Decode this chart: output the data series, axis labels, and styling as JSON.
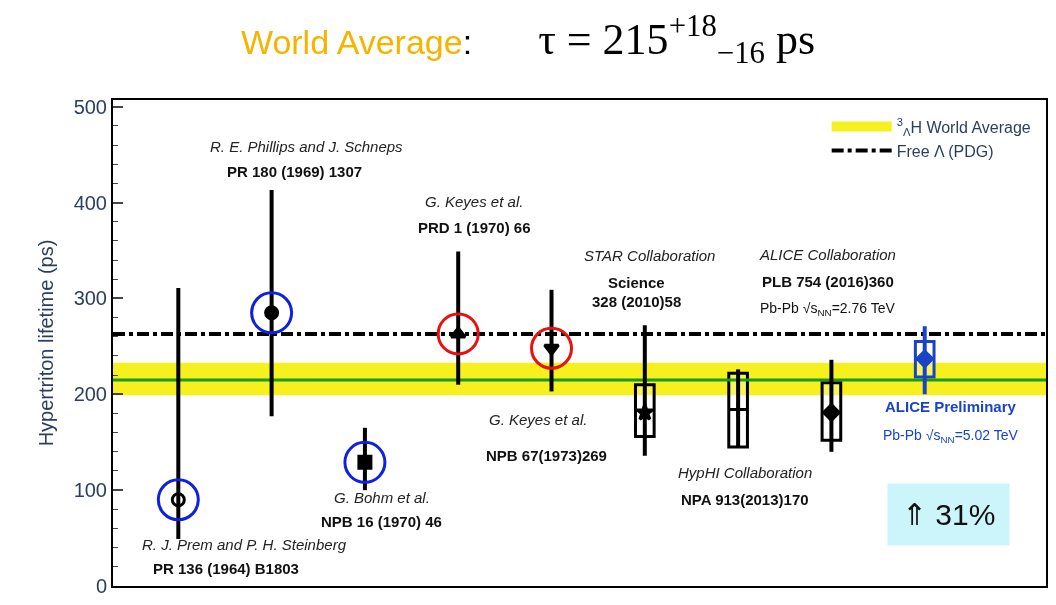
{
  "chart_data": {
    "type": "scatter",
    "title": "World Average:      τ = 215$^{+18}$$_{−16}$ ps",
    "ylabel": "Hypertriton lifetime (ps)",
    "categories": [
      null,
      null,
      null,
      null,
      null,
      null,
      null,
      null,
      null,
      null
    ],
    "ylim": [
      0,
      507
    ],
    "yticks": [
      0,
      100,
      200,
      300,
      400,
      500
    ],
    "grid": false,
    "legend": "top right",
    "tick_labels": "y",
    "series": [
      {
        "type": "scatter",
        "marker": "circle-open",
        "color": "#000000",
        "values": [
          90,
          null,
          null,
          null,
          null,
          null,
          null,
          null,
          null,
          null
        ],
        "errors": [
          [
            49,
            311
          ],
          null,
          null,
          null,
          null,
          null,
          null,
          null,
          null,
          null
        ]
      },
      {
        "type": "scatter",
        "marker": "circle",
        "color": "#000000",
        "values": [
          null,
          285,
          null,
          null,
          null,
          null,
          null,
          null,
          null,
          null
        ],
        "errors": [
          null,
          [
            177,
            413
          ],
          null,
          null,
          null,
          null,
          null,
          null,
          null,
          null
        ]
      },
      {
        "type": "scatter",
        "marker": "square",
        "color": "#000000",
        "values": [
          null,
          null,
          129,
          null,
          null,
          null,
          null,
          null,
          null,
          null
        ],
        "errors": [
          null,
          null,
          [
            100,
            165
          ],
          null,
          null,
          null,
          null,
          null,
          null,
          null
        ]
      },
      {
        "type": "scatter",
        "marker": "triangle",
        "color": "#000000",
        "values": [
          null,
          null,
          null,
          263,
          null,
          null,
          null,
          null,
          null,
          null
        ],
        "errors": [
          null,
          null,
          null,
          [
            210,
            349
          ],
          null,
          null,
          null,
          null,
          null,
          null
        ]
      },
      {
        "type": "scatter",
        "marker": "triangle-down",
        "color": "#000000",
        "values": [
          null,
          null,
          null,
          null,
          248,
          null,
          null,
          null,
          null,
          null
        ],
        "errors": [
          null,
          null,
          null,
          null,
          [
            203,
            309
          ],
          null,
          null,
          null,
          null,
          null
        ]
      },
      {
        "type": "scatter",
        "marker": "star",
        "color": "#000000",
        "values": [
          null,
          null,
          null,
          null,
          null,
          181,
          null,
          null,
          null,
          null
        ],
        "errors": [
          null,
          null,
          null,
          null,
          null,
          [
            136,
            272
          ],
          null,
          null,
          null,
          null
        ]
      },
      {
        "type": "scatter",
        "marker": "cross",
        "color": "#000000",
        "values": [
          null,
          null,
          null,
          null,
          null,
          null,
          184,
          null,
          null,
          null
        ],
        "errors": [
          null,
          null,
          null,
          null,
          null,
          null,
          [
            145,
            226
          ],
          null,
          null,
          null
        ]
      },
      {
        "type": "scatter",
        "marker": "diamond",
        "color": "#000000",
        "values": [
          null,
          null,
          null,
          null,
          null,
          null,
          null,
          181,
          null,
          null
        ],
        "errors": [
          null,
          null,
          null,
          null,
          null,
          null,
          null,
          [
            140,
            236
          ],
          null,
          null
        ]
      },
      {
        "type": "scatter",
        "marker": "diamond",
        "color": "#1a44c8",
        "values": [
          null,
          null,
          null,
          null,
          null,
          null,
          null,
          null,
          237,
          null
        ],
        "errors": [
          null,
          null,
          null,
          null,
          null,
          null,
          null,
          null,
          [
            200,
            271
          ],
          null
        ]
      },
      {
        "type": "bar",
        "colors": [
          "#000000",
          "#000000",
          "#000000",
          "#000000",
          "#000000",
          "#000000",
          "#000000",
          "#000000",
          "#1a44c8",
          "#000000"
        ],
        "base": [
          null,
          null,
          null,
          null,
          null,
          156,
          145,
          152,
          218,
          null
        ],
        "values": [
          null,
          null,
          null,
          null,
          null,
          54,
          77,
          60,
          37,
          null
        ]
      },
      {
        "type": "scatter",
        "marker": "circle-open",
        "colors": [
          "#1020e0",
          "#1020e0",
          "#1020e0",
          "#e81010",
          "#e81010",
          null,
          null,
          null,
          null,
          null
        ],
        "values": [
          90,
          285,
          129,
          263,
          248,
          null,
          null,
          null,
          null,
          null
        ]
      }
    ],
    "ref_lines": [
      {
        "axis": "y",
        "value": 263,
        "label": "Free Λ (PDG)",
        "color": "#000000",
        "line_style": "dashdot"
      },
      {
        "axis": "y",
        "value": 215,
        "color": "#1a9a1a",
        "line_style": "solid"
      }
    ],
    "bands": [
      {
        "axis": "y",
        "from": 199,
        "to": 233,
        "label": "$^{3}$$_{Λ}$H World Average",
        "color": "#f5f01e"
      }
    ],
    "annotations": [
      "R. E. Phillips and J. Schneps",
      "PR 180 (1969) 1307",
      "G. Keyes et al.",
      "PRD 1 (1970) 66",
      "STAR Collaboration",
      "Science",
      "328 (2010)58",
      "ALICE Collaboration",
      "PLB 754 (2016)360",
      "Pb-Pb √s$_{NN}$=2.76 TeV",
      "G. Keyes et al.",
      "NPB 67(1973)269",
      "G. Bohm et al.",
      "NPB 16 (1970) 46",
      "R. J. Prem and P. H. Steinberg",
      "PR 136 (1964) B1803",
      "HypHI Collaboration",
      "NPA 913(2013)170",
      "ALICE Preliminary",
      "Pb-Pb √s$_{NN}$=5.02 TeV",
      "⇑ 31%"
    ]
  }
}
